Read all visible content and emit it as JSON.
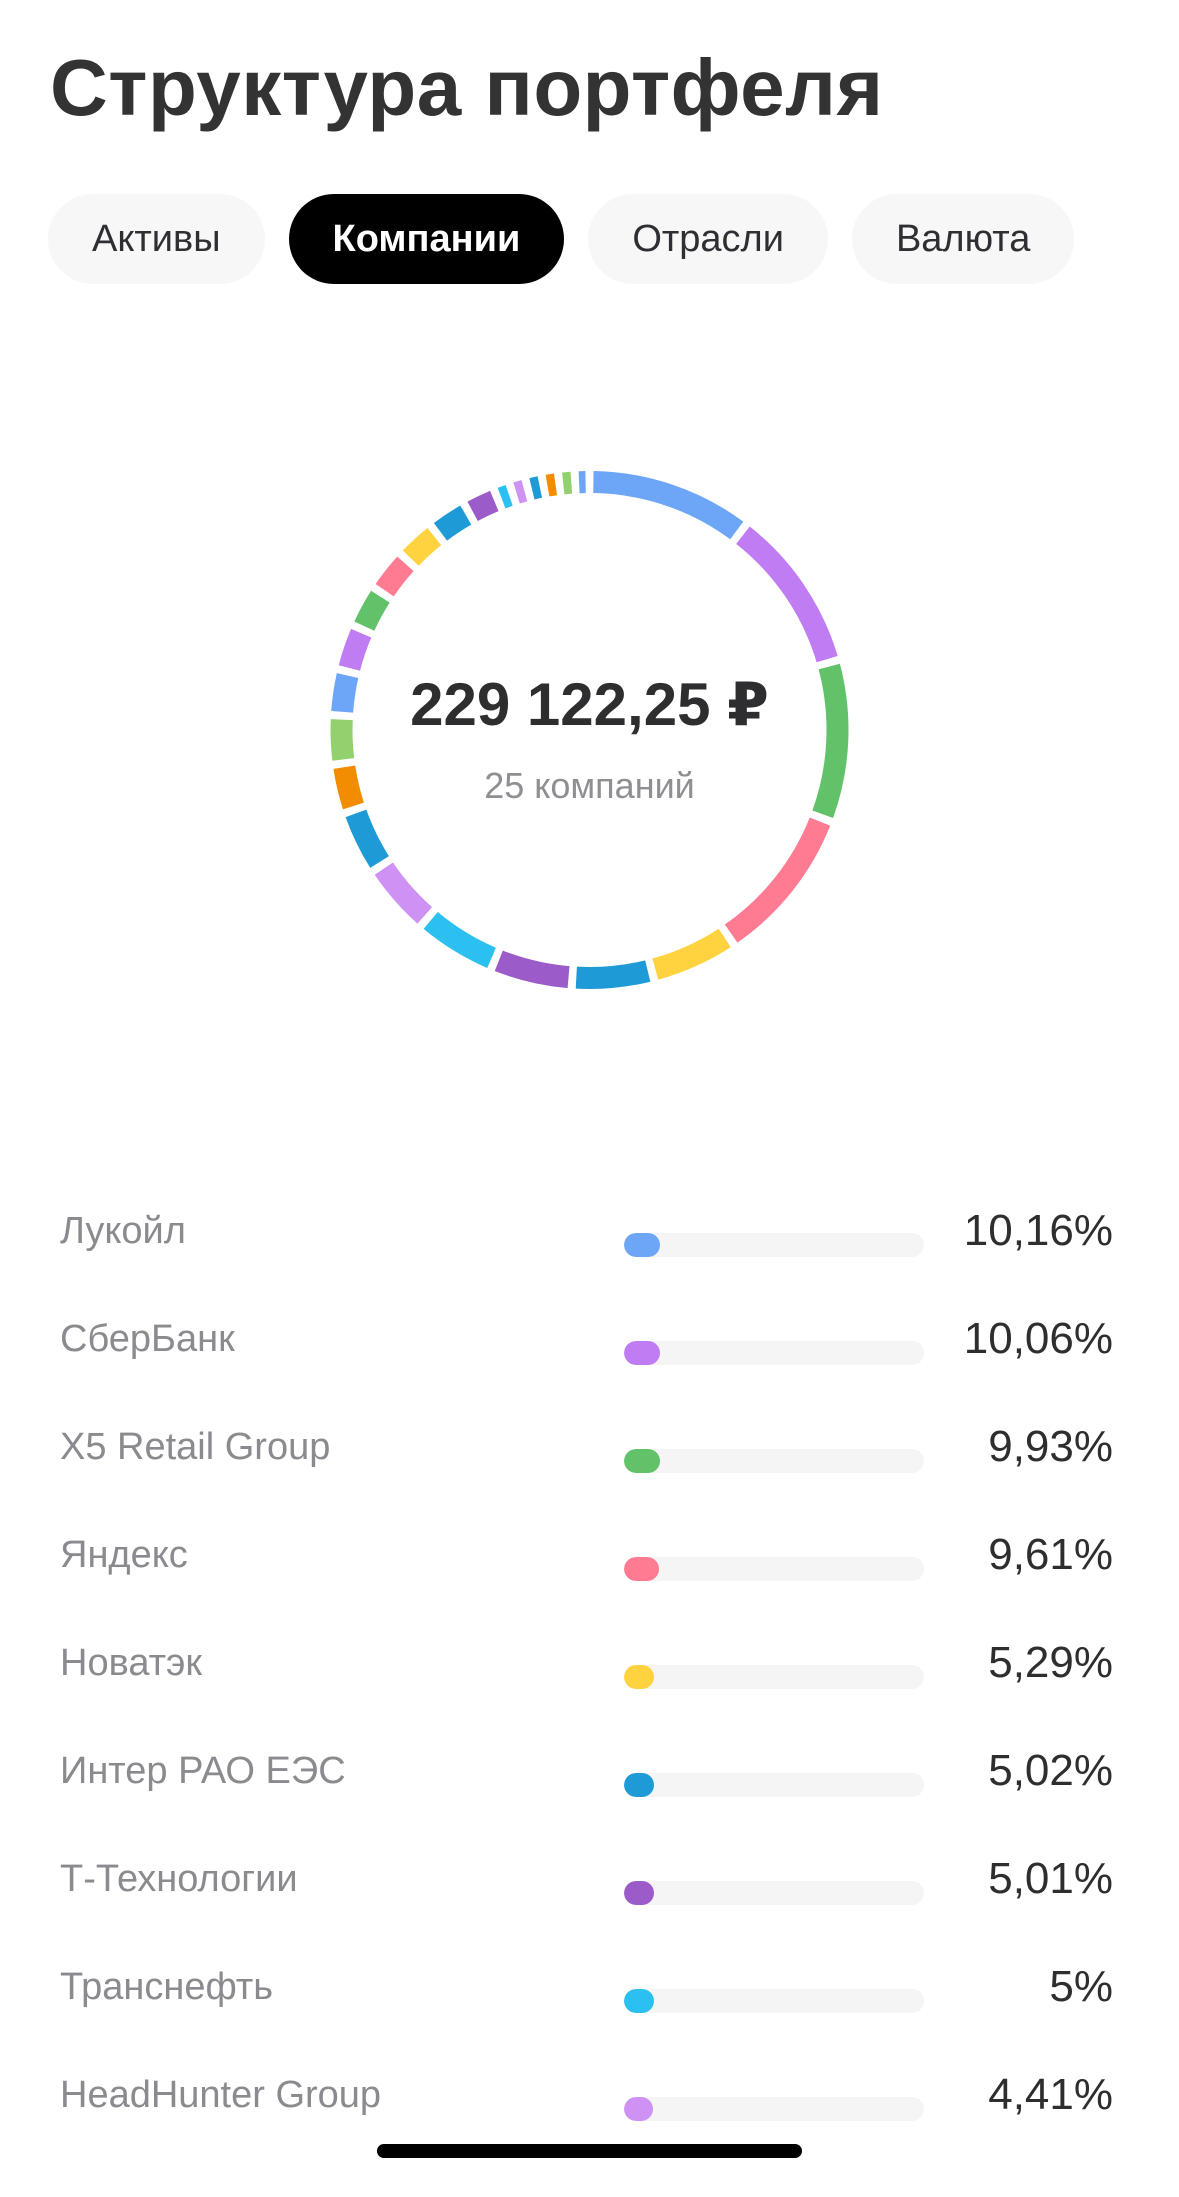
{
  "header": {
    "title": "Структура портфеля"
  },
  "tabs": [
    {
      "label": "Активы",
      "active": false
    },
    {
      "label": "Компании",
      "active": true
    },
    {
      "label": "Отрасли",
      "active": false
    },
    {
      "label": "Валюта",
      "active": false
    }
  ],
  "summary": {
    "total": "229 122,25 ₽",
    "count_label": "25 компаний"
  },
  "holdings": [
    {
      "name": "Лукойл",
      "percent": "10,16%",
      "value": 10.16,
      "color": "#6EA6F7"
    },
    {
      "name": "СберБанк",
      "percent": "10,06%",
      "value": 10.06,
      "color": "#C07CF2"
    },
    {
      "name": "X5 Retail Group",
      "percent": "9,93%",
      "value": 9.93,
      "color": "#62C26A"
    },
    {
      "name": "Яндекс",
      "percent": "9,61%",
      "value": 9.61,
      "color": "#FF7B91"
    },
    {
      "name": "Новатэк",
      "percent": "5,29%",
      "value": 5.29,
      "color": "#FFD23F"
    },
    {
      "name": "Интер РАО ЕЭС",
      "percent": "5,02%",
      "value": 5.02,
      "color": "#1E9BD7"
    },
    {
      "name": "Т-Технологии",
      "percent": "5,01%",
      "value": 5.01,
      "color": "#9B5BC8"
    },
    {
      "name": "Транснефть",
      "percent": "5%",
      "value": 5.0,
      "color": "#2CC0F0"
    },
    {
      "name": "HeadHunter Group",
      "percent": "4,41%",
      "value": 4.41,
      "color": "#CE92F5"
    }
  ],
  "donut_segments": [
    {
      "value": 10.16,
      "color": "#6EA6F7"
    },
    {
      "value": 10.06,
      "color": "#C07CF2"
    },
    {
      "value": 9.93,
      "color": "#62C26A"
    },
    {
      "value": 9.61,
      "color": "#FF7B91"
    },
    {
      "value": 5.29,
      "color": "#FFD23F"
    },
    {
      "value": 5.02,
      "color": "#1E9BD7"
    },
    {
      "value": 5.01,
      "color": "#9B5BC8"
    },
    {
      "value": 5.0,
      "color": "#2CC0F0"
    },
    {
      "value": 4.41,
      "color": "#CE92F5"
    },
    {
      "value": 3.9,
      "color": "#1E9BD7"
    },
    {
      "value": 3.0,
      "color": "#F28C00"
    },
    {
      "value": 3.0,
      "color": "#93D16E"
    },
    {
      "value": 2.8,
      "color": "#6EA6F7"
    },
    {
      "value": 2.8,
      "color": "#C07CF2"
    },
    {
      "value": 2.6,
      "color": "#62C26A"
    },
    {
      "value": 2.6,
      "color": "#FF7B91"
    },
    {
      "value": 2.5,
      "color": "#FFD23F"
    },
    {
      "value": 2.4,
      "color": "#1E9BD7"
    },
    {
      "value": 2.0,
      "color": "#9B5BC8"
    },
    {
      "value": 1.0,
      "color": "#2CC0F0"
    },
    {
      "value": 1.0,
      "color": "#CE92F5"
    },
    {
      "value": 1.0,
      "color": "#1E9BD7"
    },
    {
      "value": 1.0,
      "color": "#F28C00"
    },
    {
      "value": 1.0,
      "color": "#93D16E"
    },
    {
      "value": 0.9,
      "color": "#6EA6F7"
    }
  ]
}
